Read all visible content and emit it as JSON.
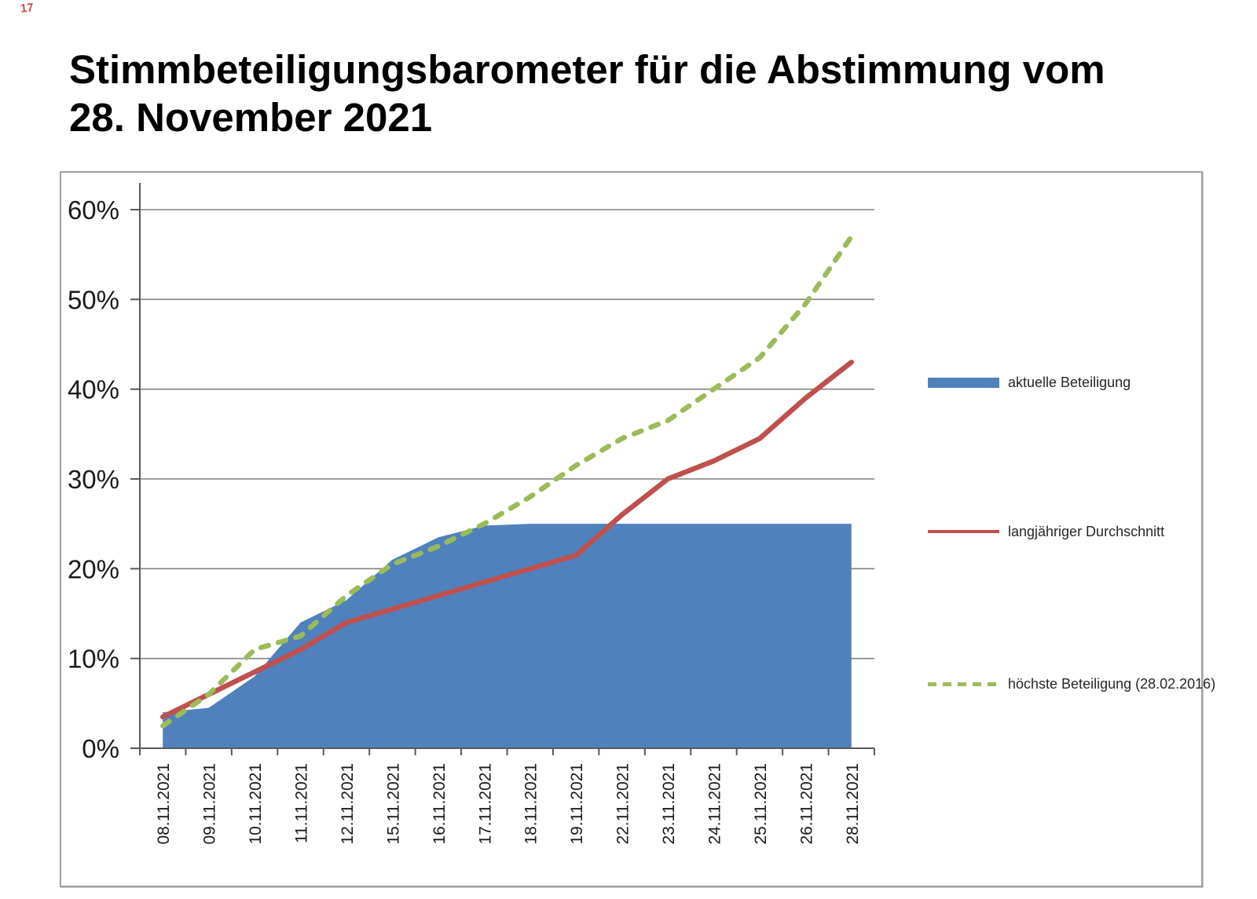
{
  "corner_mark": "17",
  "title": {
    "line1": "Stimmbeteiligungsbarometer für die Abstimmung vom",
    "line2": "28. November 2021"
  },
  "colors": {
    "blue_area": "#4F81BD",
    "red_line": "#C0504D",
    "green_dashed": "#9BBB59",
    "gridline": "#808080",
    "axis": "#595959",
    "frame_border": "#a0a0a0"
  },
  "chart_data": {
    "type": "area",
    "title": "Stimmbeteiligungsbarometer für die Abstimmung vom 28. November 2021",
    "xlabel": "",
    "ylabel": "",
    "ylim": [
      0,
      60
    ],
    "y_tick_labels": [
      "0%",
      "10%",
      "20%",
      "30%",
      "40%",
      "50%",
      "60%"
    ],
    "grid": "horizontal",
    "legend_position": "right",
    "categories": [
      "08.11.2021",
      "09.11.2021",
      "10.11.2021",
      "11.11.2021",
      "12.11.2021",
      "15.11.2021",
      "16.11.2021",
      "17.11.2021",
      "18.11.2021",
      "19.11.2021",
      "22.11.2021",
      "23.11.2021",
      "24.11.2021",
      "25.11.2021",
      "26.11.2021",
      "28.11.2021"
    ],
    "series": [
      {
        "name": "aktuelle Beteiligung",
        "type": "area",
        "color": "#4F81BD",
        "values": [
          4,
          4.5,
          8,
          14,
          16.5,
          21,
          23.5,
          24.8,
          25,
          25,
          25,
          25,
          25,
          25,
          25,
          25
        ]
      },
      {
        "name": "langjähriger Durchschnitt",
        "type": "line",
        "color": "#C0504D",
        "values": [
          3.5,
          6,
          8.5,
          11,
          14,
          15.5,
          17,
          18.5,
          20,
          21.5,
          26,
          30,
          32,
          34.5,
          39,
          43
        ]
      },
      {
        "name": "höchste Beteiligung (28.02.2016)",
        "type": "dashed-line",
        "color": "#9BBB59",
        "values": [
          2.5,
          6,
          11,
          12.5,
          17,
          20.5,
          22.5,
          25,
          28,
          31.5,
          34.5,
          36.5,
          40,
          43.5,
          49.5,
          57
        ]
      }
    ]
  }
}
